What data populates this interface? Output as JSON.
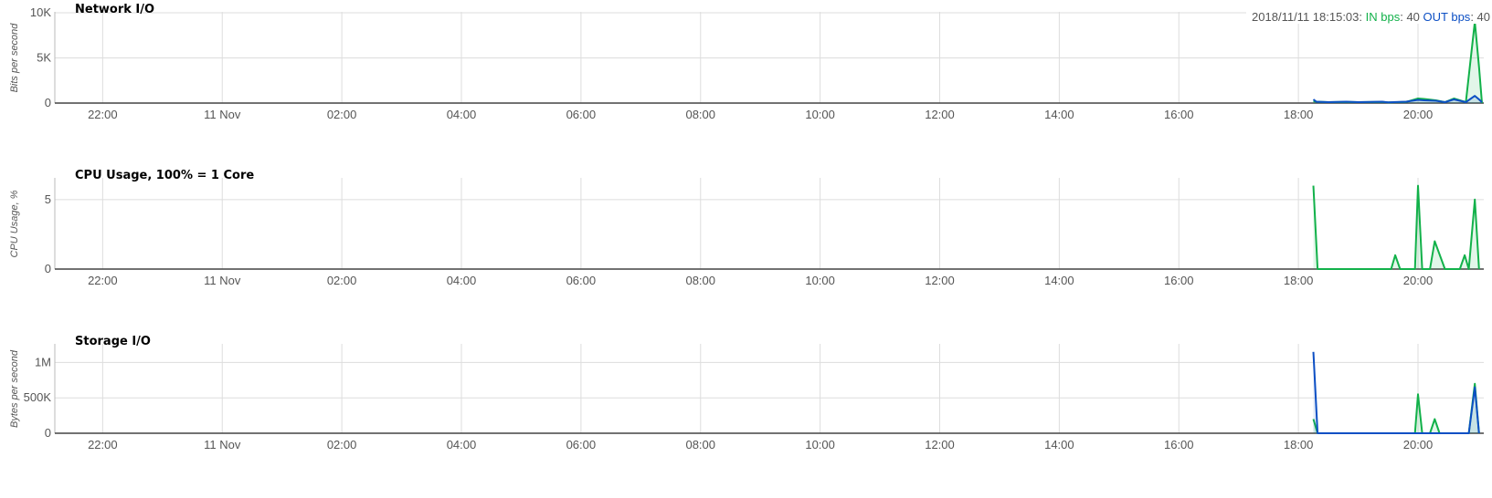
{
  "x_ticks": [
    "22:00",
    "11 Nov",
    "02:00",
    "04:00",
    "06:00",
    "08:00",
    "10:00",
    "12:00",
    "14:00",
    "16:00",
    "18:00",
    "20:00"
  ],
  "colors": {
    "in": "#12b14a",
    "out": "#0c4fc4",
    "grid": "#dddddd",
    "axis": "#444444"
  },
  "legend": {
    "timestamp": "2018/11/11 18:15:03:",
    "in_label": "IN bps",
    "in_value": ": 40",
    "out_label": "OUT bps",
    "out_value": ": 40"
  },
  "chart_data": [
    {
      "type": "area",
      "title": "Network I/O",
      "ylabel": "Bits per second",
      "ylim": [
        0,
        10000
      ],
      "y_ticks": [
        {
          "value": 0,
          "label": "0"
        },
        {
          "value": 5000,
          "label": "5K"
        },
        {
          "value": 10000,
          "label": "10K"
        }
      ],
      "grid": true,
      "xlim_hours": [
        21.2,
        45.1
      ],
      "x_axis_note": "x values are hours since 00:00 of 10 Nov 2018",
      "series": [
        {
          "name": "IN bps",
          "x": [
            42.25,
            42.3,
            42.5,
            42.8,
            43.0,
            43.4,
            43.5,
            43.8,
            44.0,
            44.1,
            44.3,
            44.45,
            44.6,
            44.8,
            44.95,
            45.02,
            45.07
          ],
          "values": [
            200,
            150,
            100,
            120,
            100,
            120,
            80,
            120,
            500,
            450,
            300,
            100,
            500,
            100,
            9000,
            4000,
            0
          ]
        },
        {
          "name": "OUT bps",
          "x": [
            42.25,
            42.3,
            42.5,
            42.8,
            43.0,
            43.4,
            43.5,
            43.8,
            44.0,
            44.1,
            44.3,
            44.45,
            44.6,
            44.8,
            44.95,
            45.02,
            45.07
          ],
          "values": [
            400,
            150,
            100,
            150,
            100,
            150,
            80,
            150,
            350,
            300,
            250,
            100,
            400,
            100,
            800,
            400,
            100
          ]
        }
      ]
    },
    {
      "type": "area",
      "title": "CPU Usage, 100% = 1 Core",
      "ylabel": "CPU Usage, %",
      "ylim": [
        0,
        6.5
      ],
      "y_ticks": [
        {
          "value": 0,
          "label": "0"
        },
        {
          "value": 5,
          "label": "5"
        }
      ],
      "grid": true,
      "xlim_hours": [
        21.2,
        45.1
      ],
      "series": [
        {
          "name": "IN bps",
          "x": [
            42.25,
            42.32,
            43.55,
            43.62,
            43.7,
            43.9,
            43.95,
            44.0,
            44.07,
            44.2,
            44.28,
            44.45,
            44.7,
            44.78,
            44.85,
            44.95,
            45.02
          ],
          "values": [
            6.0,
            0,
            0,
            1.0,
            0,
            0,
            0,
            6.0,
            0,
            0,
            2.0,
            0,
            0,
            1.0,
            0,
            5.0,
            0
          ]
        }
      ]
    },
    {
      "type": "area",
      "title": "Storage I/O",
      "ylabel": "Bytes per second",
      "ylim": [
        0,
        1250000
      ],
      "y_ticks": [
        {
          "value": 0,
          "label": "0"
        },
        {
          "value": 500000,
          "label": "500K"
        },
        {
          "value": 1000000,
          "label": "1M"
        }
      ],
      "grid": true,
      "xlim_hours": [
        21.2,
        45.1
      ],
      "series": [
        {
          "name": "IN bps",
          "x": [
            42.25,
            42.32,
            43.9,
            43.95,
            44.0,
            44.07,
            44.2,
            44.28,
            44.36,
            44.85,
            44.95,
            45.02
          ],
          "values": [
            200000,
            0,
            0,
            0,
            550000,
            0,
            0,
            200000,
            0,
            0,
            700000,
            0
          ]
        },
        {
          "name": "OUT bps",
          "x": [
            42.25,
            42.32,
            44.85,
            44.95,
            45.02
          ],
          "values": [
            1150000,
            0,
            0,
            650000,
            0
          ]
        }
      ]
    }
  ]
}
